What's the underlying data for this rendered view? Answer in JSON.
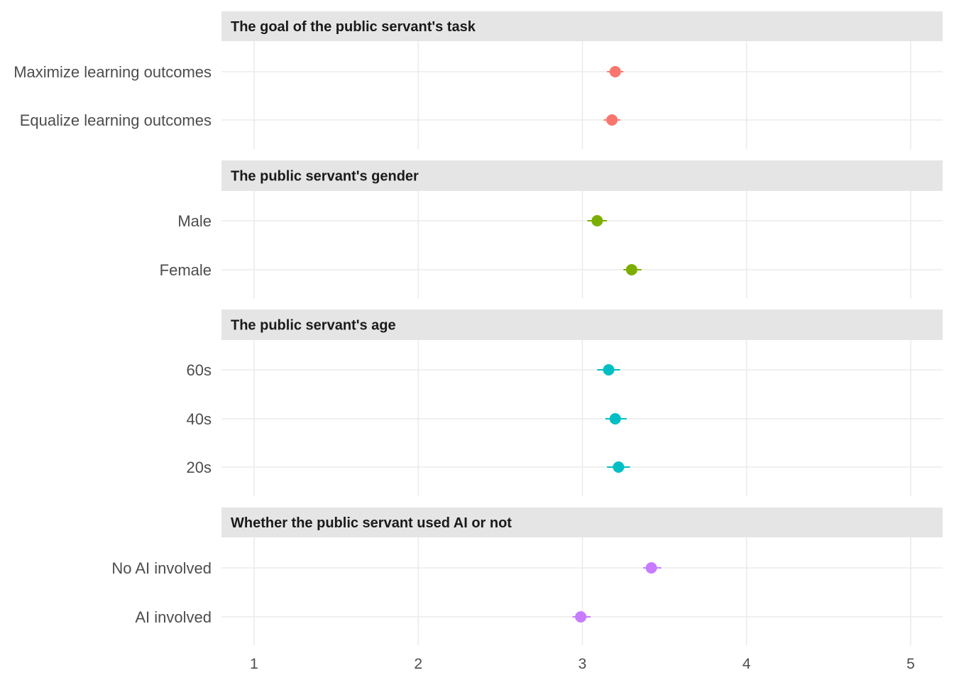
{
  "chart_data": {
    "type": "scatter",
    "title": "",
    "xlabel": "",
    "ylabel": "",
    "xlim": [
      1,
      5
    ],
    "x_ticks": [
      1,
      2,
      3,
      4,
      5
    ],
    "x_tick_labels": [
      "1",
      "2",
      "3",
      "4",
      "5"
    ],
    "grid": true,
    "legend": "none",
    "panels": [
      {
        "title": "The goal of the public servant's task",
        "color": "#F8766D",
        "items": [
          {
            "label": "Maximize learning outcomes",
            "estimate": 3.2,
            "ci": [
              3.15,
              3.25
            ]
          },
          {
            "label": "Equalize learning outcomes",
            "estimate": 3.18,
            "ci": [
              3.13,
              3.23
            ]
          }
        ]
      },
      {
        "title": "The public servant's gender",
        "color": "#7CAE00",
        "items": [
          {
            "label": "Male",
            "estimate": 3.09,
            "ci": [
              3.03,
              3.15
            ]
          },
          {
            "label": "Female",
            "estimate": 3.3,
            "ci": [
              3.25,
              3.36
            ]
          }
        ]
      },
      {
        "title": "The public servant's age",
        "color": "#00BFC4",
        "items": [
          {
            "label": "60s",
            "estimate": 3.16,
            "ci": [
              3.09,
              3.23
            ]
          },
          {
            "label": "40s",
            "estimate": 3.2,
            "ci": [
              3.14,
              3.27
            ]
          },
          {
            "label": "20s",
            "estimate": 3.22,
            "ci": [
              3.15,
              3.29
            ]
          }
        ]
      },
      {
        "title": "Whether the public servant used AI or not",
        "color": "#C77CFF",
        "items": [
          {
            "label": "No AI involved",
            "estimate": 3.42,
            "ci": [
              3.37,
              3.48
            ]
          },
          {
            "label": "AI involved",
            "estimate": 2.99,
            "ci": [
              2.94,
              3.05
            ]
          }
        ]
      }
    ]
  }
}
